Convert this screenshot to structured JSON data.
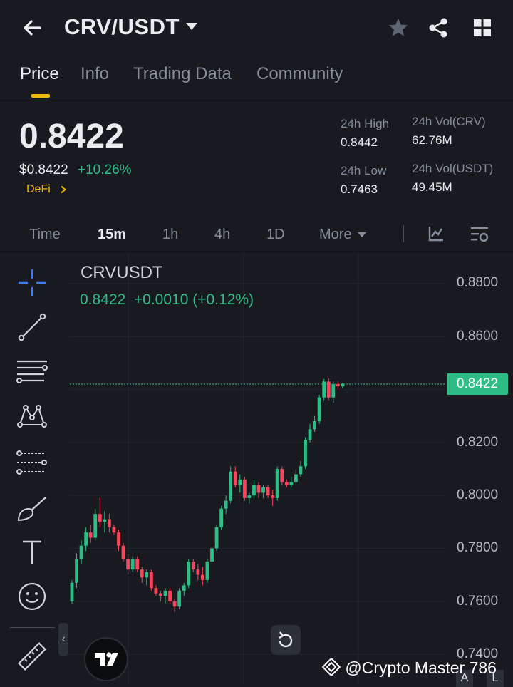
{
  "header": {
    "pair": "CRV/USDT",
    "icons": [
      "back-arrow-icon",
      "caret-down-icon",
      "star-icon",
      "share-icon",
      "grid-icon"
    ]
  },
  "tabs": [
    {
      "label": "Price",
      "active": true
    },
    {
      "label": "Info",
      "active": false
    },
    {
      "label": "Trading Data",
      "active": false
    },
    {
      "label": "Community",
      "active": false
    }
  ],
  "price": {
    "last": "0.8422",
    "usd": "$0.8422",
    "change": "+10.26%",
    "sector": "DeFi"
  },
  "stats": {
    "high_label": "24h High",
    "high_value": "0.8442",
    "low_label": "24h Low",
    "low_value": "0.7463",
    "vol_base_label": "24h Vol(CRV)",
    "vol_base_value": "62.76M",
    "vol_quote_label": "24h Vol(USDT)",
    "vol_quote_value": "49.45M"
  },
  "intervals": [
    {
      "label": "Time",
      "active": false
    },
    {
      "label": "15m",
      "active": true
    },
    {
      "label": "1h",
      "active": false
    },
    {
      "label": "4h",
      "active": false
    },
    {
      "label": "1D",
      "active": false
    },
    {
      "label": "More",
      "active": false
    }
  ],
  "chart": {
    "symbol": "CRVUSDT",
    "ohlc_line": "0.8422  +0.0010 (+0.12%)",
    "last_price_tag": "0.8422",
    "y_ticks": [
      "0.8800",
      "0.8600",
      "0.8200",
      "0.8000",
      "0.7800",
      "0.7600",
      "0.7400"
    ],
    "up_color": "#2ebd85",
    "down_color": "#f6465d"
  },
  "chart_data": {
    "type": "candlestick",
    "symbol": "CRVUSDT",
    "interval": "15m",
    "ylim": [
      0.74,
      0.885
    ],
    "candles": [
      [
        0.76,
        0.768,
        0.759,
        0.767
      ],
      [
        0.767,
        0.778,
        0.765,
        0.776
      ],
      [
        0.776,
        0.783,
        0.774,
        0.781
      ],
      [
        0.781,
        0.788,
        0.779,
        0.786
      ],
      [
        0.786,
        0.789,
        0.782,
        0.784
      ],
      [
        0.784,
        0.795,
        0.783,
        0.793
      ],
      [
        0.793,
        0.799,
        0.788,
        0.79
      ],
      [
        0.79,
        0.794,
        0.786,
        0.791
      ],
      [
        0.791,
        0.793,
        0.786,
        0.788
      ],
      [
        0.788,
        0.789,
        0.785,
        0.786
      ],
      [
        0.786,
        0.787,
        0.779,
        0.781
      ],
      [
        0.781,
        0.782,
        0.775,
        0.776
      ],
      [
        0.776,
        0.778,
        0.77,
        0.772
      ],
      [
        0.772,
        0.777,
        0.771,
        0.776
      ],
      [
        0.776,
        0.777,
        0.771,
        0.772
      ],
      [
        0.772,
        0.773,
        0.767,
        0.769
      ],
      [
        0.769,
        0.772,
        0.766,
        0.771
      ],
      [
        0.771,
        0.772,
        0.764,
        0.765
      ],
      [
        0.765,
        0.766,
        0.762,
        0.763
      ],
      [
        0.763,
        0.764,
        0.76,
        0.762
      ],
      [
        0.762,
        0.765,
        0.759,
        0.764
      ],
      [
        0.764,
        0.765,
        0.759,
        0.76
      ],
      [
        0.76,
        0.761,
        0.756,
        0.758
      ],
      [
        0.758,
        0.765,
        0.757,
        0.764
      ],
      [
        0.764,
        0.767,
        0.762,
        0.766
      ],
      [
        0.766,
        0.776,
        0.765,
        0.775
      ],
      [
        0.775,
        0.776,
        0.771,
        0.772
      ],
      [
        0.772,
        0.774,
        0.768,
        0.77
      ],
      [
        0.77,
        0.773,
        0.766,
        0.768
      ],
      [
        0.768,
        0.776,
        0.767,
        0.775
      ],
      [
        0.775,
        0.782,
        0.774,
        0.78
      ],
      [
        0.78,
        0.789,
        0.779,
        0.788
      ],
      [
        0.788,
        0.796,
        0.787,
        0.795
      ],
      [
        0.795,
        0.8,
        0.793,
        0.798
      ],
      [
        0.798,
        0.811,
        0.797,
        0.809
      ],
      [
        0.809,
        0.811,
        0.803,
        0.804
      ],
      [
        0.804,
        0.808,
        0.801,
        0.806
      ],
      [
        0.806,
        0.807,
        0.798,
        0.799
      ],
      [
        0.799,
        0.801,
        0.797,
        0.8
      ],
      [
        0.8,
        0.806,
        0.799,
        0.804
      ],
      [
        0.804,
        0.805,
        0.799,
        0.801
      ],
      [
        0.801,
        0.804,
        0.799,
        0.803
      ],
      [
        0.803,
        0.804,
        0.799,
        0.8
      ],
      [
        0.8,
        0.802,
        0.796,
        0.799
      ],
      [
        0.799,
        0.811,
        0.798,
        0.81
      ],
      [
        0.81,
        0.811,
        0.804,
        0.805
      ],
      [
        0.805,
        0.806,
        0.803,
        0.804
      ],
      [
        0.804,
        0.807,
        0.803,
        0.805
      ],
      [
        0.805,
        0.81,
        0.804,
        0.808
      ],
      [
        0.808,
        0.813,
        0.807,
        0.811
      ],
      [
        0.811,
        0.822,
        0.81,
        0.821
      ],
      [
        0.821,
        0.827,
        0.82,
        0.825
      ],
      [
        0.825,
        0.83,
        0.824,
        0.828
      ],
      [
        0.828,
        0.838,
        0.827,
        0.837
      ],
      [
        0.837,
        0.844,
        0.836,
        0.843
      ],
      [
        0.843,
        0.8442,
        0.836,
        0.837
      ],
      [
        0.837,
        0.843,
        0.835,
        0.842
      ],
      [
        0.842,
        0.843,
        0.84,
        0.8412
      ],
      [
        0.8412,
        0.8425,
        0.8405,
        0.8422
      ]
    ]
  },
  "watermark": "@Crypto Master 786",
  "corner_buttons": [
    "A",
    "L"
  ]
}
